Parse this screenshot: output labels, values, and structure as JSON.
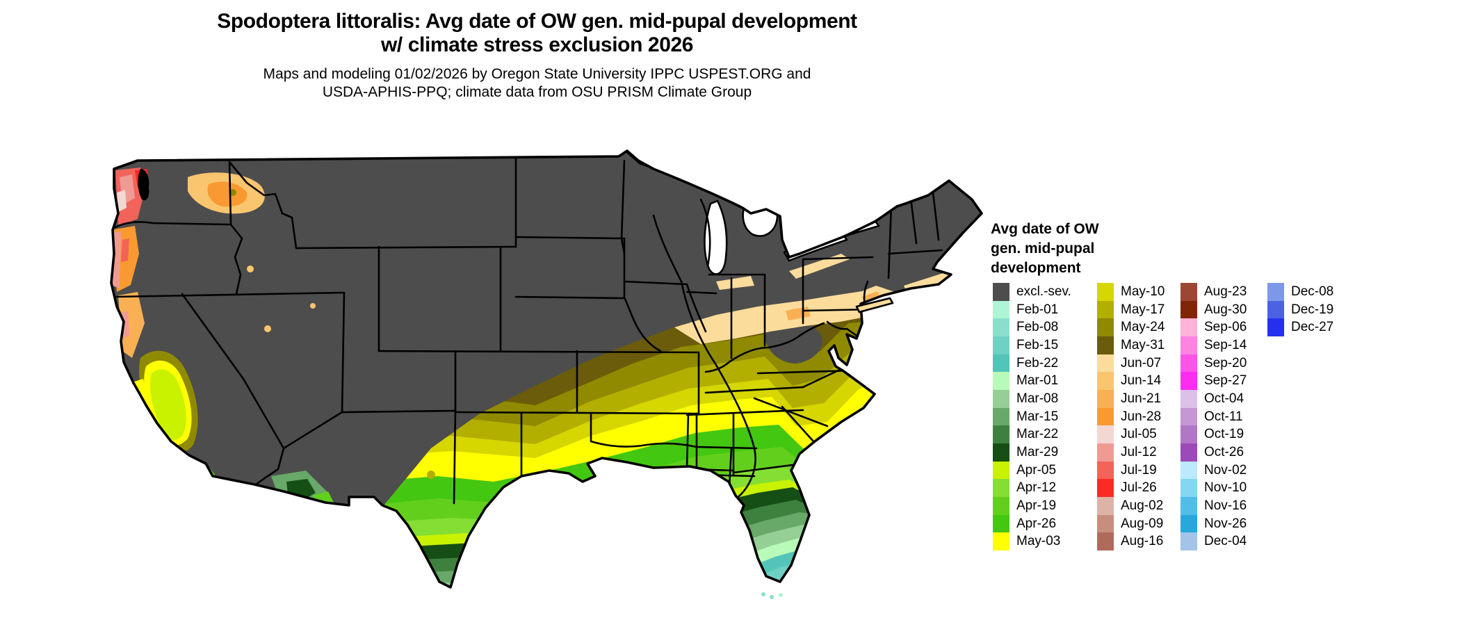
{
  "header": {
    "title_line1": "Spodoptera littoralis: Avg date of OW gen. mid-pupal development",
    "title_line2": "w/ climate stress exclusion 2026",
    "subtitle_line1": "Maps and modeling 01/02/2026 by Oregon State University IPPC USPEST.ORG and",
    "subtitle_line2": "USDA-APHIS-PPQ; climate data from OSU PRISM Climate Group"
  },
  "legend": {
    "title_line1": "Avg date of OW",
    "title_line2": "gen. mid-pupal",
    "title_line3": "development",
    "entries": [
      {
        "label": "excl.-sev.",
        "color": "#4D4D4D"
      },
      {
        "label": "Feb-01",
        "color": "#AEF5D5"
      },
      {
        "label": "Feb-08",
        "color": "#8ADFCC"
      },
      {
        "label": "Feb-15",
        "color": "#6FD1C3"
      },
      {
        "label": "Feb-22",
        "color": "#52C4B8"
      },
      {
        "label": "Mar-01",
        "color": "#B8FAB8"
      },
      {
        "label": "Mar-08",
        "color": "#95CF95"
      },
      {
        "label": "Mar-15",
        "color": "#68A868"
      },
      {
        "label": "Mar-22",
        "color": "#3E813E"
      },
      {
        "label": "Mar-29",
        "color": "#164F16"
      },
      {
        "label": "Apr-05",
        "color": "#C8F200"
      },
      {
        "label": "Apr-12",
        "color": "#84DE33"
      },
      {
        "label": "Apr-19",
        "color": "#63CF1D"
      },
      {
        "label": "Apr-26",
        "color": "#44C710"
      },
      {
        "label": "May-03",
        "color": "#FFFF00"
      },
      {
        "label": "May-10",
        "color": "#D6D600"
      },
      {
        "label": "May-17",
        "color": "#B3AF00"
      },
      {
        "label": "May-24",
        "color": "#8F8A00"
      },
      {
        "label": "May-31",
        "color": "#6A5C0A"
      },
      {
        "label": "Jun-07",
        "color": "#FBDC9B"
      },
      {
        "label": "Jun-14",
        "color": "#FAC56F"
      },
      {
        "label": "Jun-21",
        "color": "#F9AF54"
      },
      {
        "label": "Jun-28",
        "color": "#F89A31"
      },
      {
        "label": "Jul-05",
        "color": "#F3D7D3"
      },
      {
        "label": "Jul-12",
        "color": "#EF9B94"
      },
      {
        "label": "Jul-19",
        "color": "#F2635A"
      },
      {
        "label": "Jul-26",
        "color": "#FA2B25"
      },
      {
        "label": "Aug-02",
        "color": "#DDB3A8"
      },
      {
        "label": "Aug-09",
        "color": "#C78E7D"
      },
      {
        "label": "Aug-16",
        "color": "#AF6A5B"
      },
      {
        "label": "Aug-23",
        "color": "#9A4733"
      },
      {
        "label": "Aug-30",
        "color": "#7F2609"
      },
      {
        "label": "Sep-06",
        "color": "#FFB3D9"
      },
      {
        "label": "Sep-14",
        "color": "#FE84E2"
      },
      {
        "label": "Sep-20",
        "color": "#FD54E8"
      },
      {
        "label": "Sep-27",
        "color": "#FE2BF1"
      },
      {
        "label": "Oct-04",
        "color": "#DCC0E8"
      },
      {
        "label": "Oct-11",
        "color": "#C696D5"
      },
      {
        "label": "Oct-19",
        "color": "#B177C7"
      },
      {
        "label": "Oct-26",
        "color": "#9B4AB7"
      },
      {
        "label": "Nov-02",
        "color": "#BBE9FD"
      },
      {
        "label": "Nov-10",
        "color": "#85D6F1"
      },
      {
        "label": "Nov-16",
        "color": "#52BDE7"
      },
      {
        "label": "Nov-26",
        "color": "#28A7DB"
      },
      {
        "label": "Dec-04",
        "color": "#A3C3E8"
      },
      {
        "label": "Dec-08",
        "color": "#7D97E9"
      },
      {
        "label": "Dec-19",
        "color": "#4B63E2"
      },
      {
        "label": "Dec-27",
        "color": "#2530EE"
      }
    ]
  },
  "map": {
    "outline_color": "#000000",
    "water_color": "#FFFFFF",
    "excluded_color": "#4D4D4D"
  }
}
